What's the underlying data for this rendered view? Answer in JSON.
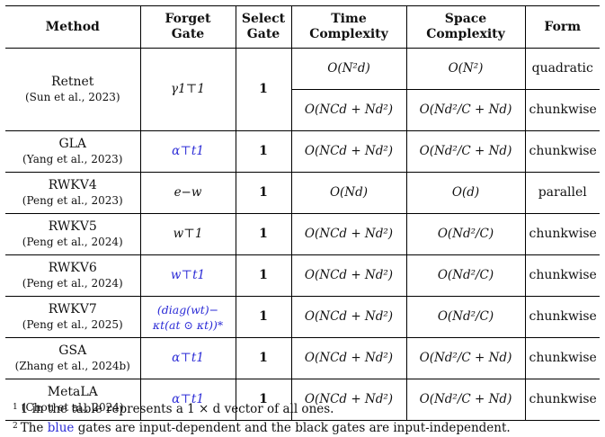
{
  "header": {
    "method": "Method",
    "forget_gate": [
      "Forget",
      "Gate"
    ],
    "select_gate": [
      "Select",
      "Gate"
    ],
    "time": [
      "Time",
      "Complexity"
    ],
    "space": [
      "Space",
      "Complexity"
    ],
    "form": "Form"
  },
  "rows": [
    {
      "name": "Retnet",
      "cite": "(Sun et al., 2023)",
      "forget": "γ1⊤1",
      "select": "1",
      "time_a": "O(N²d)",
      "space_a": "O(N²)",
      "form_a": "quadratic",
      "time_b": "O(NCd + Nd²)",
      "space_b": "O(Nd²/C + Nd)",
      "form_b": "chunkwise"
    },
    {
      "name": "GLA",
      "cite": "(Yang et al., 2023)",
      "forget": "α⊤t1",
      "select": "1",
      "time": "O(NCd + Nd²)",
      "space": "O(Nd²/C + Nd)",
      "form": "chunkwise"
    },
    {
      "name": "RWKV4",
      "cite": "(Peng et al., 2023)",
      "forget": "e−w",
      "select": "1",
      "time": "O(Nd)",
      "space": "O(d)",
      "form": "parallel"
    },
    {
      "name": "RWKV5",
      "cite": "(Peng et al., 2024)",
      "forget": "w⊤1",
      "select": "1",
      "time": "O(NCd + Nd²)",
      "space": "O(Nd²/C)",
      "form": "chunkwise"
    },
    {
      "name": "RWKV6",
      "cite": "(Peng et al., 2024)",
      "forget": "w⊤t1",
      "select": "1",
      "time": "O(NCd + Nd²)",
      "space": "O(Nd²/C)",
      "form": "chunkwise"
    },
    {
      "name": "RWKV7",
      "cite": "(Peng et al., 2025)",
      "forget_a": "(diag(wt)−",
      "forget_b": "κt(at ⊙ κt))*",
      "select": "1",
      "time": "O(NCd + Nd²)",
      "space": "O(Nd²/C)",
      "form": "chunkwise"
    },
    {
      "name": "GSA",
      "cite": "(Zhang et al., 2024b)",
      "forget": "α⊤t1",
      "select": "1",
      "time": "O(NCd + Nd²)",
      "space": "O(Nd²/C + Nd)",
      "form": "chunkwise"
    },
    {
      "name": "MetaLA",
      "cite": "(Chou et al., 2024)",
      "forget": "α⊤t1",
      "select": "1",
      "time": "O(NCd + Nd²)",
      "space": "O(Nd²/C + Nd)",
      "form": "chunkwise"
    }
  ],
  "notes": {
    "n1_mark": "1",
    "n1": "1 in the table represents a 1 × d vector of all ones.",
    "n2_mark": "2",
    "n2_pre": "The",
    "n2_blue": "blue",
    "n2_post": "gates are input-dependent and the black gates are input-independent."
  },
  "colors": {
    "blue_gate": "#2b2bd6"
  }
}
